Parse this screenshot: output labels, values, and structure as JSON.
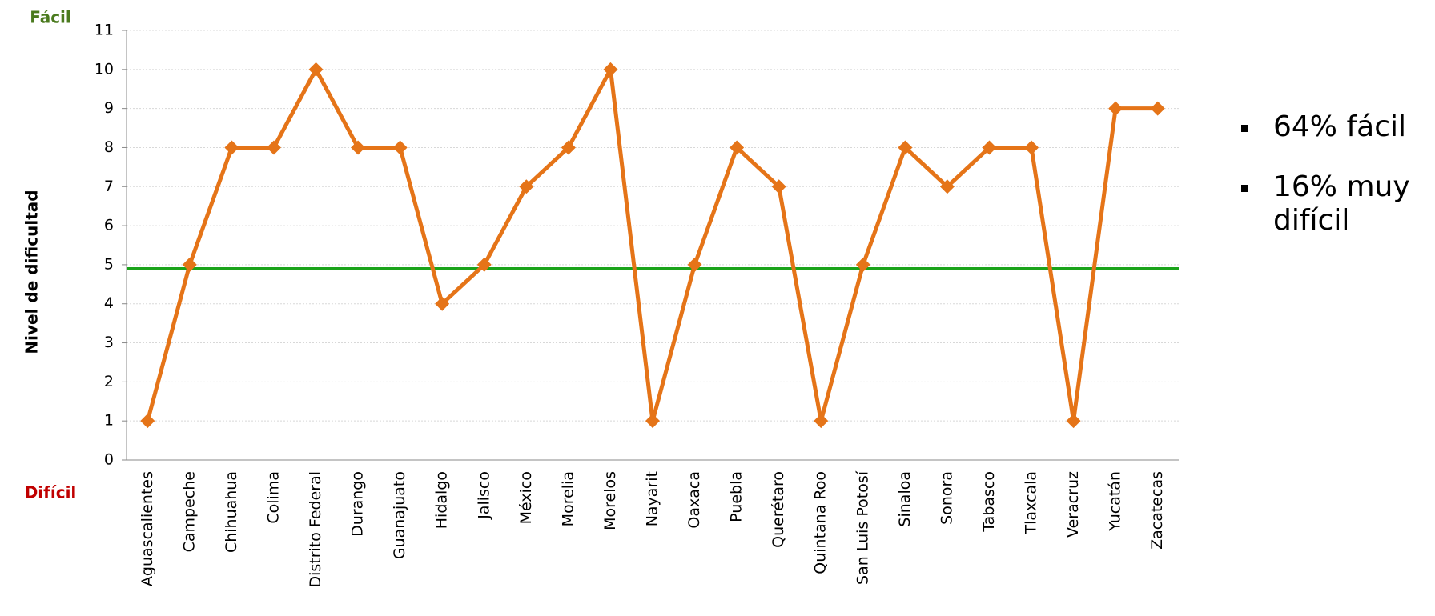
{
  "chart_data": {
    "type": "line",
    "y_label": "Nivel de dificultad",
    "top_annotation": "Fácil",
    "bottom_annotation": "Difícil",
    "categories": [
      "Aguascalientes",
      "Campeche",
      "Chihuahua",
      "Colima",
      "Distrito Federal",
      "Durango",
      "Guanajuato",
      "Hidalgo",
      "Jalisco",
      "México",
      "Morelia",
      "Morelos",
      "Nayarit",
      "Oaxaca",
      "Puebla",
      "Querétaro",
      "Quintana Roo",
      "San Luis Potosí",
      "Sinaloa",
      "Sonora",
      "Tabasco",
      "Tlaxcala",
      "Veracruz",
      "Yucatán",
      "Zacatecas"
    ],
    "values": [
      1,
      5,
      8,
      8,
      10,
      8,
      8,
      4,
      5,
      7,
      8,
      10,
      1,
      5,
      8,
      7,
      1,
      5,
      8,
      7,
      8,
      8,
      1,
      9,
      9
    ],
    "color": "#e57418",
    "reference_line": {
      "value": 4.9,
      "color": "#1aa31a"
    },
    "ylim": [
      0,
      11
    ],
    "yticks": [
      0,
      1,
      2,
      3,
      4,
      5,
      6,
      7,
      8,
      9,
      10,
      11
    ],
    "grid": true,
    "bullets": [
      "64% fácil",
      "16% muy difícil"
    ]
  }
}
